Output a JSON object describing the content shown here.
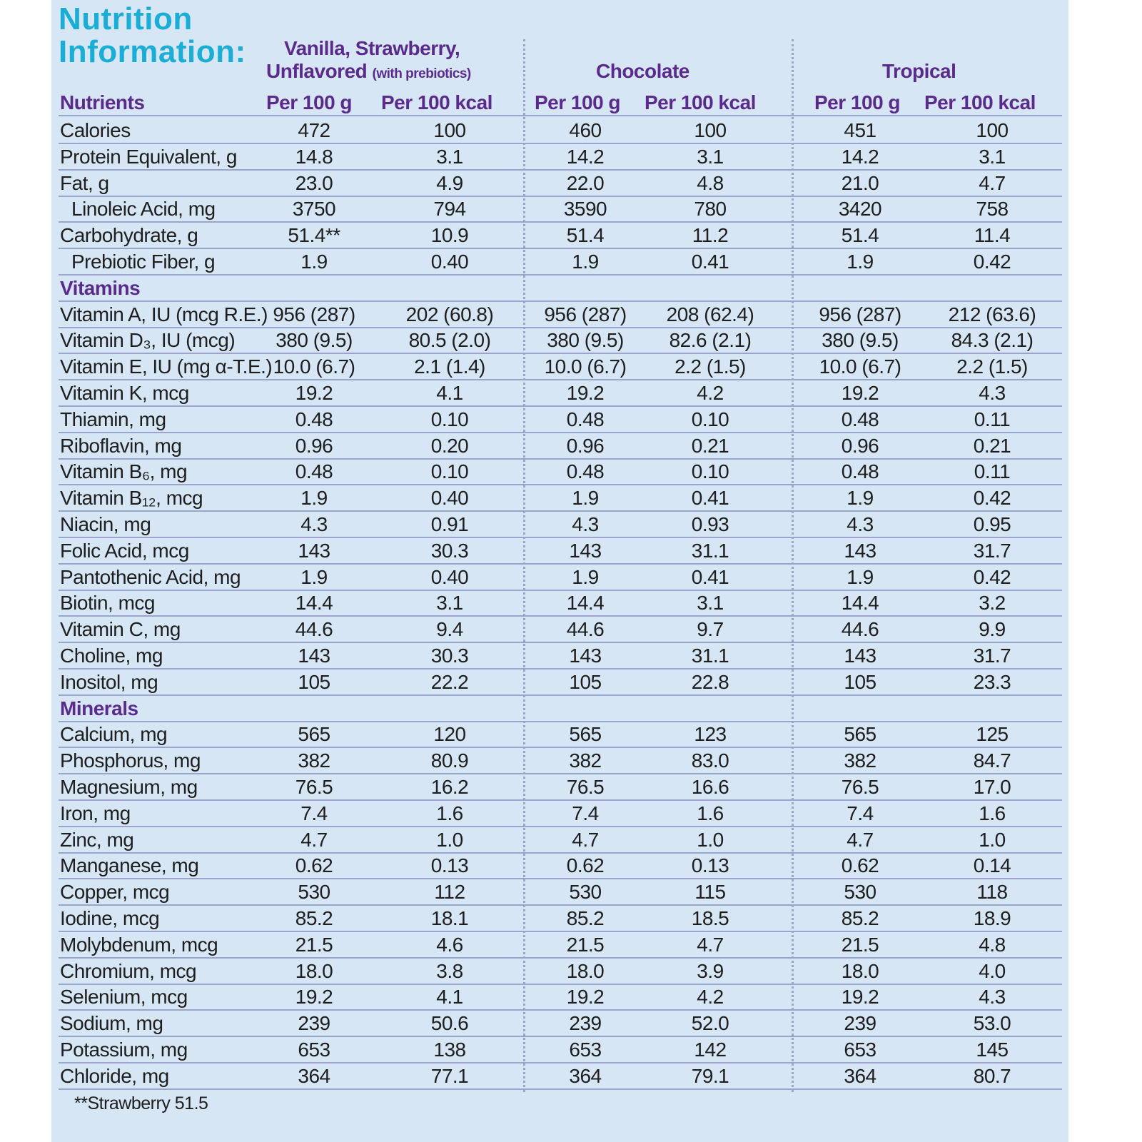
{
  "title": [
    "Nutrition",
    "Information:"
  ],
  "colors": {
    "title": "#1aaed6",
    "header": "#5a2b8c",
    "background": "#d6e6f4",
    "rule": "#9ca3cc"
  },
  "groups": {
    "vanilla_line1": "Vanilla, Strawberry,",
    "vanilla_line2": "Unflavored",
    "vanilla_note": "(with prebiotics)",
    "chocolate": "Chocolate",
    "tropical": "Tropical"
  },
  "columns": {
    "nutrients": "Nutrients",
    "per100g": "Per 100 g",
    "per100kcal": "Per 100 kcal"
  },
  "rows": [
    {
      "label": "Calories",
      "values": [
        "472",
        "100",
        "460",
        "100",
        "451",
        "100"
      ]
    },
    {
      "label": "Protein Equivalent, g",
      "values": [
        "14.8",
        "3.1",
        "14.2",
        "3.1",
        "14.2",
        "3.1"
      ]
    },
    {
      "label": "Fat, g",
      "values": [
        "23.0",
        "4.9",
        "22.0",
        "4.8",
        "21.0",
        "4.7"
      ]
    },
    {
      "label": "Linoleic Acid, mg",
      "indent": true,
      "values": [
        "3750",
        "794",
        "3590",
        "780",
        "3420",
        "758"
      ]
    },
    {
      "label": "Carbohydrate, g",
      "values": [
        "51.4**",
        "10.9",
        "51.4",
        "11.2",
        "51.4",
        "11.4"
      ]
    },
    {
      "label": "Prebiotic Fiber, g",
      "indent": true,
      "values": [
        "1.9",
        "0.40",
        "1.9",
        "0.41",
        "1.9",
        "0.42"
      ]
    },
    {
      "label": "Vitamins",
      "section": true,
      "values": []
    },
    {
      "label": "Vitamin A, IU (mcg R.E.)",
      "values": [
        "956 (287)",
        "202 (60.8)",
        "956 (287)",
        "208 (62.4)",
        "956 (287)",
        "212 (63.6)"
      ]
    },
    {
      "label": "Vitamin D₃, IU (mcg)",
      "values": [
        "380 (9.5)",
        "80.5 (2.0)",
        "380 (9.5)",
        "82.6 (2.1)",
        "380 (9.5)",
        "84.3 (2.1)"
      ]
    },
    {
      "label": "Vitamin E, IU (mg α-T.E.)",
      "values": [
        "10.0 (6.7)",
        "2.1 (1.4)",
        "10.0 (6.7)",
        "2.2 (1.5)",
        "10.0 (6.7)",
        "2.2 (1.5)"
      ]
    },
    {
      "label": "Vitamin K, mcg",
      "values": [
        "19.2",
        "4.1",
        "19.2",
        "4.2",
        "19.2",
        "4.3"
      ]
    },
    {
      "label": "Thiamin, mg",
      "values": [
        "0.48",
        "0.10",
        "0.48",
        "0.10",
        "0.48",
        "0.11"
      ]
    },
    {
      "label": "Riboflavin, mg",
      "values": [
        "0.96",
        "0.20",
        "0.96",
        "0.21",
        "0.96",
        "0.21"
      ]
    },
    {
      "label": "Vitamin B₆, mg",
      "values": [
        "0.48",
        "0.10",
        "0.48",
        "0.10",
        "0.48",
        "0.11"
      ]
    },
    {
      "label": "Vitamin B₁₂, mcg",
      "values": [
        "1.9",
        "0.40",
        "1.9",
        "0.41",
        "1.9",
        "0.42"
      ]
    },
    {
      "label": "Niacin, mg",
      "values": [
        "4.3",
        "0.91",
        "4.3",
        "0.93",
        "4.3",
        "0.95"
      ]
    },
    {
      "label": "Folic Acid, mcg",
      "values": [
        "143",
        "30.3",
        "143",
        "31.1",
        "143",
        "31.7"
      ]
    },
    {
      "label": "Pantothenic Acid, mg",
      "values": [
        "1.9",
        "0.40",
        "1.9",
        "0.41",
        "1.9",
        "0.42"
      ]
    },
    {
      "label": "Biotin, mcg",
      "values": [
        "14.4",
        "3.1",
        "14.4",
        "3.1",
        "14.4",
        "3.2"
      ]
    },
    {
      "label": "Vitamin C, mg",
      "values": [
        "44.6",
        "9.4",
        "44.6",
        "9.7",
        "44.6",
        "9.9"
      ]
    },
    {
      "label": "Choline, mg",
      "values": [
        "143",
        "30.3",
        "143",
        "31.1",
        "143",
        "31.7"
      ]
    },
    {
      "label": "Inositol, mg",
      "values": [
        "105",
        "22.2",
        "105",
        "22.8",
        "105",
        "23.3"
      ]
    },
    {
      "label": "Minerals",
      "section": true,
      "values": []
    },
    {
      "label": "Calcium, mg",
      "values": [
        "565",
        "120",
        "565",
        "123",
        "565",
        "125"
      ]
    },
    {
      "label": "Phosphorus, mg",
      "values": [
        "382",
        "80.9",
        "382",
        "83.0",
        "382",
        "84.7"
      ]
    },
    {
      "label": "Magnesium, mg",
      "values": [
        "76.5",
        "16.2",
        "76.5",
        "16.6",
        "76.5",
        "17.0"
      ]
    },
    {
      "label": "Iron, mg",
      "values": [
        "7.4",
        "1.6",
        "7.4",
        "1.6",
        "7.4",
        "1.6"
      ]
    },
    {
      "label": "Zinc, mg",
      "values": [
        "4.7",
        "1.0",
        "4.7",
        "1.0",
        "4.7",
        "1.0"
      ]
    },
    {
      "label": "Manganese, mg",
      "values": [
        "0.62",
        "0.13",
        "0.62",
        "0.13",
        "0.62",
        "0.14"
      ]
    },
    {
      "label": "Copper, mcg",
      "values": [
        "530",
        "112",
        "530",
        "115",
        "530",
        "118"
      ]
    },
    {
      "label": "Iodine, mcg",
      "values": [
        "85.2",
        "18.1",
        "85.2",
        "18.5",
        "85.2",
        "18.9"
      ]
    },
    {
      "label": "Molybdenum, mcg",
      "values": [
        "21.5",
        "4.6",
        "21.5",
        "4.7",
        "21.5",
        "4.8"
      ]
    },
    {
      "label": "Chromium, mcg",
      "values": [
        "18.0",
        "3.8",
        "18.0",
        "3.9",
        "18.0",
        "4.0"
      ]
    },
    {
      "label": "Selenium, mcg",
      "values": [
        "19.2",
        "4.1",
        "19.2",
        "4.2",
        "19.2",
        "4.3"
      ]
    },
    {
      "label": "Sodium, mg",
      "values": [
        "239",
        "50.6",
        "239",
        "52.0",
        "239",
        "53.0"
      ]
    },
    {
      "label": "Potassium, mg",
      "values": [
        "653",
        "138",
        "653",
        "142",
        "653",
        "145"
      ]
    },
    {
      "label": "Chloride, mg",
      "values": [
        "364",
        "77.1",
        "364",
        "79.1",
        "364",
        "80.7"
      ]
    }
  ],
  "footnote": "**Strawberry 51.5"
}
